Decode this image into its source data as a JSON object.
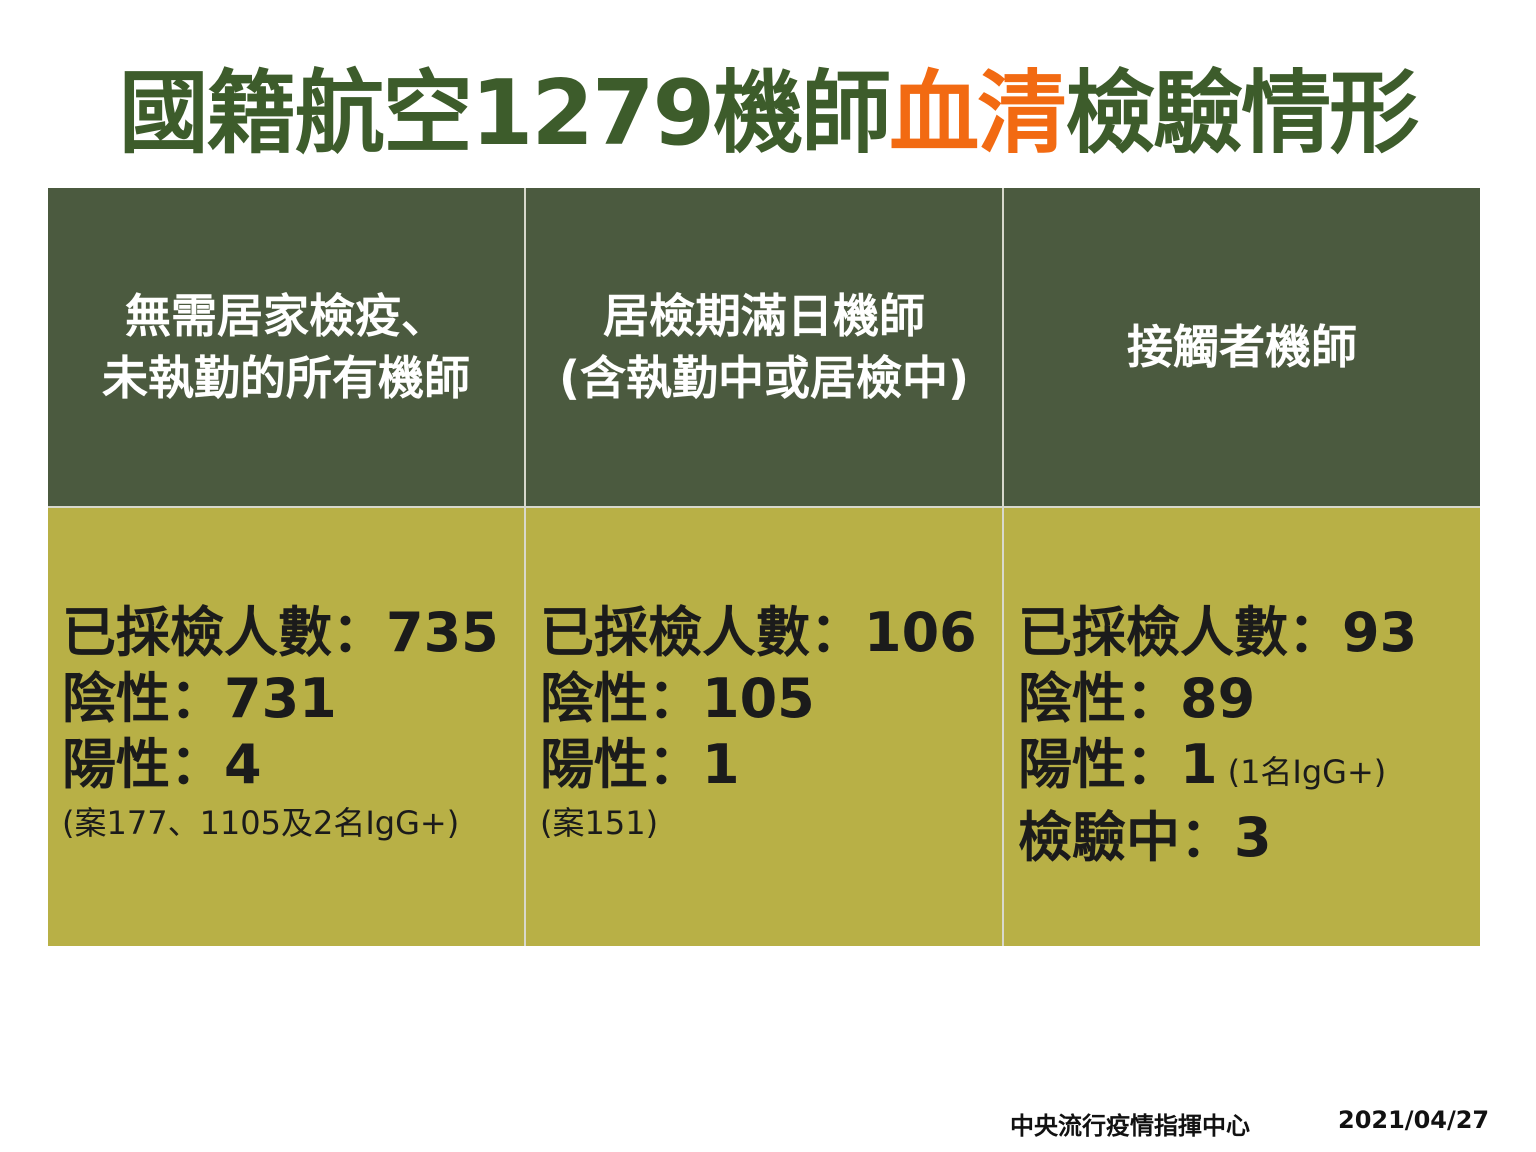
{
  "header": {
    "title": {
      "part1": "國籍航空1279機師",
      "highlight": "血清",
      "part2": "檢驗情形"
    }
  },
  "table": {
    "columns": [
      {
        "header": [
          "無需居家檢疫、",
          "未執勤的所有機師"
        ],
        "lines": [
          {
            "text": "已採檢人數：735"
          },
          {
            "text": "陰性：731"
          },
          {
            "text": "陽性：4"
          }
        ],
        "note": "(案177、1105及2名IgG+)"
      },
      {
        "header": [
          "居檢期滿日機師",
          "(含執勤中或居檢中)"
        ],
        "lines": [
          {
            "text": "已採檢人數：106"
          },
          {
            "text": "陰性：105"
          },
          {
            "text": "陽性：1"
          }
        ],
        "note": "(案151)"
      },
      {
        "header": [
          "接觸者機師"
        ],
        "lines": [
          {
            "text": "已採檢人數：93"
          },
          {
            "text": "陰性：89"
          },
          {
            "text": "陽性：1",
            "suffix": "(1名IgG+)"
          },
          {
            "text": "檢驗中：3"
          }
        ]
      }
    ]
  },
  "footer": {
    "source": "中央流行疫情指揮中心",
    "date": "2021/04/27"
  }
}
